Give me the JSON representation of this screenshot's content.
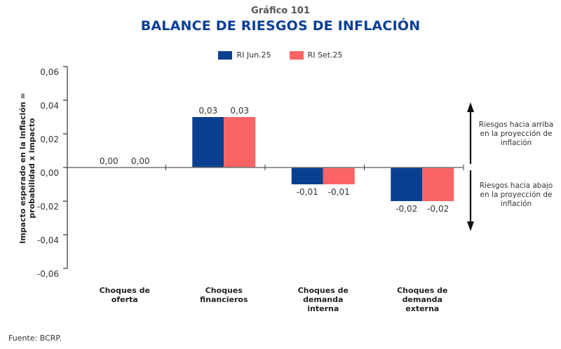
{
  "header": {
    "subtitle": "Gráfico 101",
    "title": "BALANCE DE RIESGOS DE INFLACIÓN"
  },
  "footer": {
    "source": "Fuente: BCRP."
  },
  "colors": {
    "series1": "#0a3f8f",
    "series2": "#fb6464",
    "title": "#0c3f95"
  },
  "chart_data": {
    "type": "bar",
    "title": "BALANCE DE RIESGOS DE INFLACIÓN",
    "subtitle": "Gráfico 101",
    "xlabel": "",
    "ylabel": [
      "Impacto esperado en la inflación =",
      "probabilidad x impacto"
    ],
    "ylim": [
      -0.06,
      0.06
    ],
    "yticks": [
      0.06,
      0.04,
      0.02,
      0.0,
      -0.02,
      -0.04,
      -0.06
    ],
    "ytick_labels": [
      "0,06",
      "0,04",
      "0,02",
      "0,00",
      "-0,02",
      "-0,04",
      "-0,06"
    ],
    "grid": false,
    "legend_position": "top-center",
    "categories": [
      [
        "Choques de",
        "oferta"
      ],
      [
        "Choques",
        "financieros"
      ],
      [
        "Choques de",
        "demanda",
        "interna"
      ],
      [
        "Choques de",
        "demanda",
        "externa"
      ]
    ],
    "series": [
      {
        "name": "RI Jun.25",
        "color": "#0a3f8f",
        "values": [
          0.0,
          0.03,
          -0.01,
          -0.02
        ],
        "labels": [
          "0,00",
          "0,03",
          "-0,01",
          "-0,02"
        ]
      },
      {
        "name": "RI Set.25",
        "color": "#fb6464",
        "values": [
          0.0,
          0.03,
          -0.01,
          -0.02
        ],
        "labels": [
          "0,00",
          "0,03",
          "-0,01",
          "-0,02"
        ]
      }
    ],
    "annotations": {
      "up": [
        "Riesgos hacia arriba",
        "en la proyección de",
        "inflación"
      ],
      "down": [
        "Riesgos hacia abajo",
        "en la proyección de",
        "inflación"
      ]
    }
  }
}
